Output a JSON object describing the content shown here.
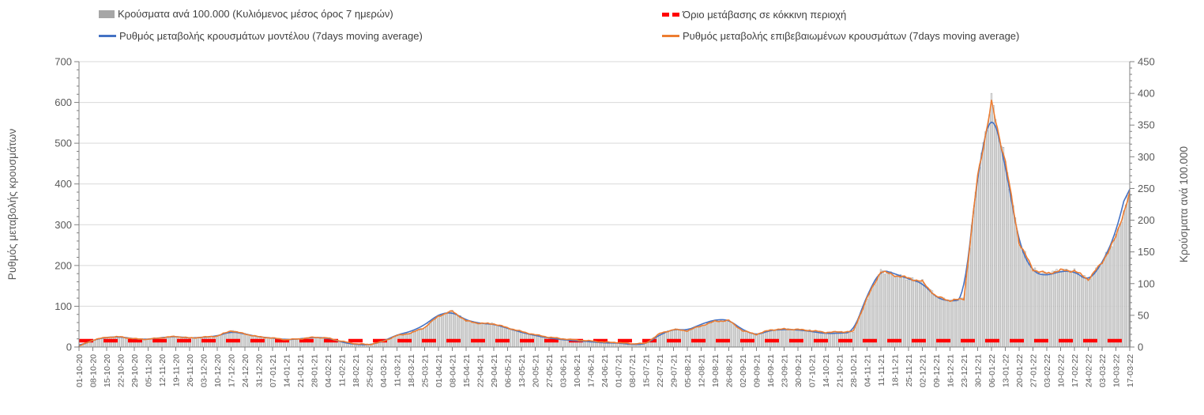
{
  "chart_data": {
    "type": "combo",
    "x": [
      "01-10-20",
      "08-10-20",
      "15-10-20",
      "22-10-20",
      "29-10-20",
      "05-11-20",
      "12-11-20",
      "19-11-20",
      "26-11-20",
      "03-12-20",
      "10-12-20",
      "17-12-20",
      "24-12-20",
      "31-12-20",
      "07-01-21",
      "14-01-21",
      "21-01-21",
      "28-01-21",
      "04-02-21",
      "11-02-21",
      "18-02-21",
      "25-02-21",
      "04-03-21",
      "11-03-21",
      "18-03-21",
      "25-03-21",
      "01-04-21",
      "08-04-21",
      "15-04-21",
      "22-04-21",
      "29-04-21",
      "06-05-21",
      "13-05-21",
      "20-05-21",
      "27-05-21",
      "03-06-21",
      "10-06-21",
      "17-06-21",
      "24-06-21",
      "01-07-21",
      "08-07-21",
      "15-07-21",
      "22-07-21",
      "29-07-21",
      "05-08-21",
      "12-08-21",
      "19-08-21",
      "26-08-21",
      "02-09-21",
      "09-09-21",
      "16-09-21",
      "23-09-21",
      "30-09-21",
      "07-10-21",
      "14-10-21",
      "21-10-21",
      "28-10-21",
      "04-11-21",
      "11-11-21",
      "18-11-21",
      "25-11-21",
      "02-12-21",
      "09-12-21",
      "16-12-21",
      "23-12-21",
      "30-12-21",
      "06-01-22",
      "13-01-22",
      "20-01-22",
      "27-01-22",
      "03-02-22",
      "10-02-22",
      "17-02-22",
      "24-02-22",
      "03-03-22",
      "10-03-22",
      "17-03-22"
    ],
    "axes": {
      "left": {
        "title": "Ρυθμός μεταβολής κρουσμάτων",
        "min": 0,
        "max": 700,
        "major_step": 100,
        "minor_step": 20
      },
      "right": {
        "title": "Κρούσματα ανά 100.000",
        "min": 0,
        "max": 450,
        "major_step": 50,
        "minor_step": 10
      },
      "x_label_rotation": -90
    },
    "grid": "horizontal",
    "legend_position": "top",
    "series": [
      {
        "name": "Κρούσματα ανά 100.000 (Κυλιόμενος μέσος όρος 7 ημερών)",
        "type": "bar",
        "axis": "right",
        "color": "#ededed",
        "edge_color": "#9e9e9e",
        "legend_color": "#a6a6a6",
        "values": [
          1,
          11,
          15,
          16,
          13,
          12,
          15,
          17,
          14,
          15,
          17,
          26,
          21,
          16,
          14,
          12,
          13,
          15,
          14,
          9,
          5,
          4,
          9,
          18,
          22,
          31,
          49,
          57,
          41,
          37,
          37,
          30,
          24,
          19,
          15,
          13,
          11,
          10,
          8,
          7,
          5,
          6,
          21,
          28,
          26,
          33,
          41,
          42,
          26,
          20,
          27,
          28,
          28,
          26,
          23,
          24,
          24,
          77,
          120,
          113,
          109,
          103,
          80,
          73,
          76,
          270,
          384,
          293,
          165,
          122,
          116,
          121,
          120,
          107,
          133,
          174,
          243
        ],
        "peak_spike": {
          "index": 66,
          "value": 400
        }
      },
      {
        "name": "Ρυθμός μεταβολής κρουσμάτων μοντέλου (7days moving average)",
        "type": "line",
        "axis": "left",
        "color": "#4472c4",
        "values": [
          2,
          17,
          24,
          25,
          20,
          19,
          23,
          26,
          22,
          24,
          27,
          38,
          32,
          25,
          22,
          18,
          20,
          24,
          22,
          12,
          6,
          5,
          14,
          30,
          38,
          54,
          80,
          86,
          66,
          58,
          56,
          46,
          36,
          28,
          22,
          18,
          15,
          13,
          10,
          10,
          6,
          7,
          30,
          44,
          41,
          56,
          67,
          67,
          42,
          29,
          41,
          43,
          42,
          38,
          33,
          34,
          36,
          128,
          190,
          180,
          167,
          157,
          121,
          112,
          117,
          430,
          588,
          447,
          250,
          183,
          175,
          186,
          186,
          161,
          205,
          280,
          416
        ]
      },
      {
        "name": "Ρυθμός μεταβολής επιβεβαιωμένων κρουσμάτων (7days moving average)",
        "type": "line",
        "axis": "left",
        "color": "#ed7d31",
        "values": [
          2,
          17,
          24,
          25,
          20,
          19,
          23,
          26,
          22,
          24,
          27,
          40,
          32,
          25,
          22,
          18,
          20,
          24,
          22,
          14,
          8,
          6,
          14,
          28,
          34,
          48,
          76,
          88,
          64,
          58,
          57,
          47,
          38,
          30,
          24,
          20,
          17,
          15,
          12,
          11,
          8,
          9,
          33,
          43,
          40,
          52,
          63,
          65,
          40,
          31,
          42,
          44,
          43,
          40,
          36,
          37,
          38,
          120,
          186,
          176,
          169,
          160,
          124,
          114,
          118,
          420,
          597,
          455,
          256,
          190,
          180,
          188,
          187,
          166,
          207,
          270,
          378
        ]
      }
    ],
    "threshold": {
      "name": "Όριο μετάβασης σε κόκκινη περιοχή",
      "axis": "right",
      "value": 10,
      "color": "#ff0000",
      "style": "dashed"
    }
  }
}
